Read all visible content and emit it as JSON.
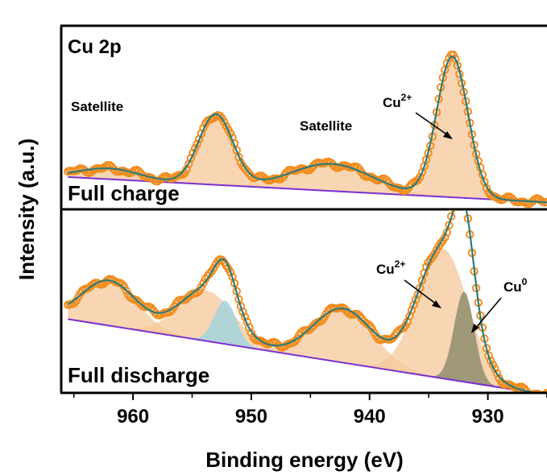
{
  "chart_data": {
    "type": "line",
    "xlabel": "Binding energy (eV)",
    "ylabel": "Intensity (a.u.)",
    "xlim": [
      966,
      925
    ],
    "x_reversed": true,
    "xticks": [
      960,
      950,
      940,
      930
    ],
    "ylim": [
      0,
      1
    ],
    "colors": {
      "data_marker": "#f28c1d",
      "fit_line": "#2e7b7a",
      "background_line": "#7b2fd0",
      "cu2_fill": "#f6c89a",
      "cu0_fill": "#8a8a6a",
      "side_peak_fill": "#9fd3e0"
    },
    "panels": [
      {
        "name": "top",
        "title": "Cu 2p",
        "state_label": "Full charge",
        "annotations": [
          {
            "text": "Satellite",
            "x": 961.5
          },
          {
            "text": "Satellite",
            "x": 943.5
          },
          {
            "text": "Cu",
            "sup": "2+",
            "x": 933
          }
        ],
        "background": {
          "type": "linear",
          "start": [
            965.5,
            0.17
          ],
          "end": [
            925,
            0.03
          ]
        },
        "peaks": [
          {
            "name": "satellite-1",
            "center": 962.0,
            "height": 0.06,
            "fwhm": 6.0,
            "fill": "cu2"
          },
          {
            "name": "cu2p1/2",
            "center": 953.0,
            "height": 0.39,
            "fwhm": 3.4,
            "fill": "cu2"
          },
          {
            "name": "satellite-2",
            "center": 943.2,
            "height": 0.15,
            "fwhm": 8.0,
            "fill": "cu2"
          },
          {
            "name": "cu2p3/2-cu2+",
            "center": 933.0,
            "height": 0.78,
            "fwhm": 3.1,
            "fill": "cu2"
          }
        ]
      },
      {
        "name": "bottom",
        "state_label": "Full discharge",
        "annotations": [
          {
            "text": "Cu",
            "sup": "2+",
            "x": 935.0
          },
          {
            "text": "Cu",
            "sup": "0",
            "x": 931.0
          }
        ],
        "background": {
          "type": "linear",
          "start": [
            965.5,
            0.4
          ],
          "end": [
            925,
            -0.02
          ]
        },
        "peaks": [
          {
            "name": "satellite-1",
            "center": 962.0,
            "height": 0.25,
            "fwhm": 5.5,
            "fill": "cu2"
          },
          {
            "name": "cu2p1/2-cu2+",
            "center": 953.8,
            "height": 0.28,
            "fwhm": 5.5,
            "fill": "cu2"
          },
          {
            "name": "cu2p1/2-cu0",
            "center": 952.2,
            "height": 0.24,
            "fwhm": 2.2,
            "fill": "side"
          },
          {
            "name": "satellite-2",
            "center": 942.2,
            "height": 0.3,
            "fwhm": 6.0,
            "fill": "cu2"
          },
          {
            "name": "cu2p3/2-cu2+",
            "center": 933.8,
            "height": 0.72,
            "fwhm": 5.0,
            "fill": "cu2"
          },
          {
            "name": "cu2p3/2-cu0",
            "center": 932.0,
            "height": 0.5,
            "fwhm": 2.0,
            "fill": "cu0"
          }
        ]
      }
    ]
  }
}
